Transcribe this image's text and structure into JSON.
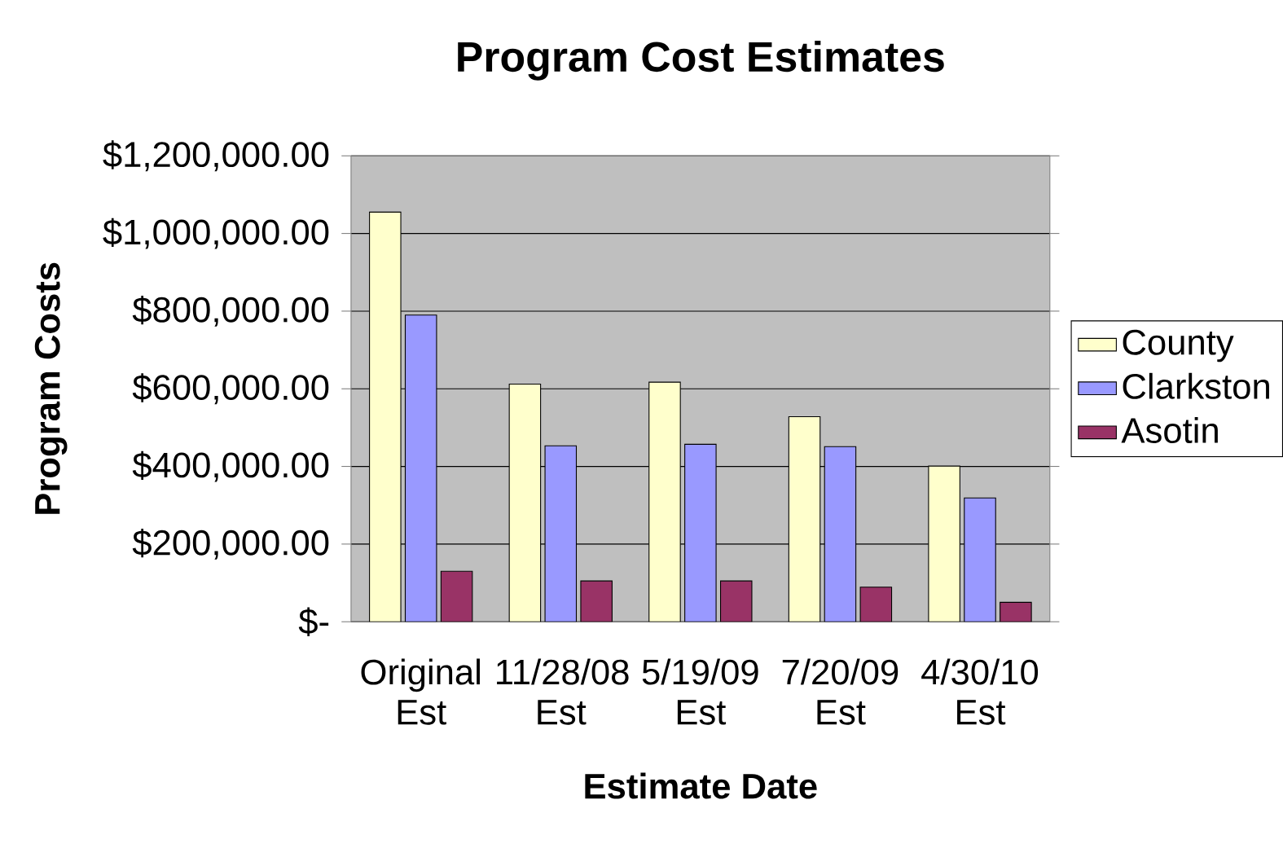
{
  "chart_data": {
    "type": "bar",
    "title": "Program Cost Estimates",
    "xlabel": "Estimate Date",
    "ylabel": "Program Costs",
    "categories": [
      "Original Est",
      "11/28/08 Est",
      "5/19/09 Est",
      "7/20/09 Est",
      "4/30/10 Est"
    ],
    "series": [
      {
        "name": "County",
        "color": "#ffffcc",
        "values": [
          1055000,
          612000,
          617000,
          528000,
          401000
        ]
      },
      {
        "name": "Clarkston",
        "color": "#9999ff",
        "values": [
          790000,
          453000,
          457000,
          451000,
          319000
        ]
      },
      {
        "name": "Asotin",
        "color": "#993366",
        "values": [
          130000,
          105000,
          105000,
          89000,
          50000
        ]
      }
    ],
    "ylim": [
      0,
      1200000
    ],
    "yticks": [
      {
        "value": 0,
        "label": "$-"
      },
      {
        "value": 200000,
        "label": "$200,000.00"
      },
      {
        "value": 400000,
        "label": "$400,000.00"
      },
      {
        "value": 600000,
        "label": "$600,000.00"
      },
      {
        "value": 800000,
        "label": "$800,000.00"
      },
      {
        "value": 1000000,
        "label": "$1,000,000.00"
      },
      {
        "value": 1200000,
        "label": "$1,200,000.00"
      }
    ],
    "grid": "y",
    "legend": "right"
  }
}
